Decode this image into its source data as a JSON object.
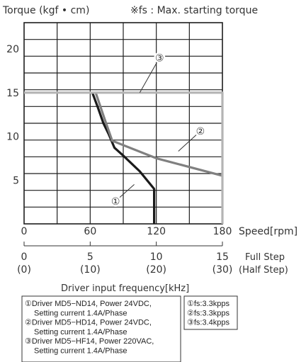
{
  "chart_data": {
    "type": "line",
    "title": "",
    "ylabel": "Torque (kgf • cm)",
    "note": "※fs : Max. starting torque",
    "xlabel": "Speed[rpm]",
    "xlim": [
      0,
      180
    ],
    "ylim": [
      0,
      23
    ],
    "grid": true,
    "x_ticks": [
      "0",
      "60",
      "120",
      "180"
    ],
    "y_ticks": [
      "5",
      "10",
      "15",
      "20"
    ],
    "full_step_label": "Full Step",
    "half_step_label": "(Half Step)",
    "freq_axis_title": "Driver input frequency[kHz]",
    "freq_ticks": [
      {
        "speed": 0,
        "full": "0",
        "half": "(0)"
      },
      {
        "speed": 60,
        "full": "5",
        "half": "(10)"
      },
      {
        "speed": 120,
        "full": "10",
        "half": "(20)"
      },
      {
        "speed": 180,
        "full": "15",
        "half": "(30)"
      }
    ],
    "series": [
      {
        "name": "①",
        "color": "#1a1a1a",
        "x": [
          62,
          67,
          72,
          77,
          82,
          90,
          105,
          118,
          118
        ],
        "y": [
          15.0,
          13.3,
          11.5,
          10.2,
          8.7,
          7.8,
          6.0,
          4.0,
          0.0
        ]
      },
      {
        "name": "②",
        "color": "#808080",
        "x": [
          65,
          73,
          80,
          120,
          180
        ],
        "y": [
          15.0,
          12.0,
          9.5,
          7.5,
          5.5
        ]
      },
      {
        "name": "③",
        "color": "#b4b4b4",
        "x": [
          0,
          180,
          180
        ],
        "y": [
          15.0,
          15.0,
          0.0
        ]
      }
    ],
    "callouts": [
      {
        "label": "①",
        "x": 83,
        "y": 2.6,
        "to_x": 100,
        "to_y": 4.5
      },
      {
        "label": "②",
        "x": 160,
        "y": 10.6,
        "to_x": 140,
        "to_y": 8.3
      },
      {
        "label": "③",
        "x": 123,
        "y": 19.0,
        "to_x": 105,
        "to_y": 15.0
      }
    ],
    "driver_legend": [
      "①Driver MD5−ND14, Power 24VDC,",
      "Setting current 1.4A/Phase",
      "②Driver MD5−HD14, Power 24VDC,",
      "Setting current 1.4A/Phase",
      "③Driver MD5−HF14, Power 220VAC,",
      "Setting current 1.4A/Phase"
    ],
    "fs_legend": [
      "①fs:3.3kpps",
      "②fs:3.3kpps",
      "③fs:3.4kpps"
    ]
  }
}
